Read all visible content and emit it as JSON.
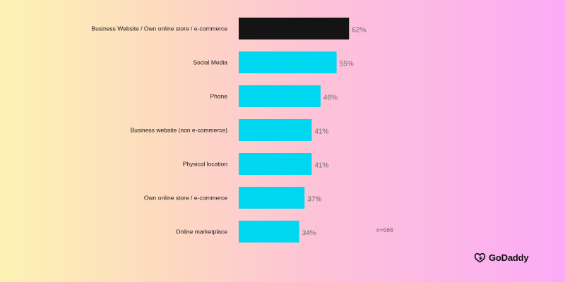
{
  "chart_data": {
    "type": "bar",
    "orientation": "horizontal",
    "categories": [
      "Business Website / Own online store / e-commerce",
      "Social Media",
      "Phone",
      "Business website (non e-commerce)",
      "Physical location",
      "Own online store / e-commerce",
      "Online marketplace"
    ],
    "values": [
      62,
      55,
      46,
      41,
      41,
      37,
      34
    ],
    "value_labels": [
      "62%",
      "55%",
      "46%",
      "41%",
      "41%",
      "37%",
      "34%"
    ],
    "bar_colors": [
      "#141414",
      "#00d7f0",
      "#00d7f0",
      "#00d7f0",
      "#00d7f0",
      "#00d7f0",
      "#00d7f0"
    ],
    "xlim": [
      0,
      100
    ],
    "grid": false,
    "legend": "none"
  },
  "note": "n=566",
  "brand": {
    "name": "GoDaddy",
    "icon": "godaddy-logo-icon"
  }
}
